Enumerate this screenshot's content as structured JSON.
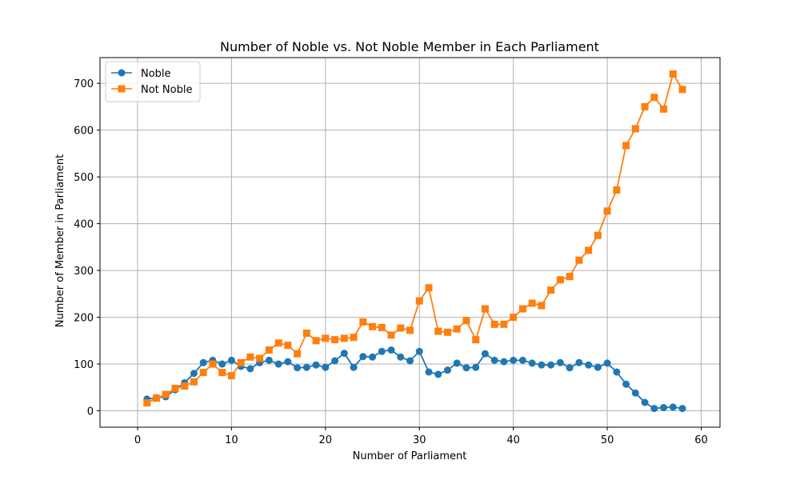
{
  "chart_data": {
    "type": "line",
    "title": "Number of Noble vs. Not Noble Member in Each Parliament",
    "xlabel": "Number of Parliament",
    "ylabel": "Number of Member in Parliament",
    "xlim": [
      -4,
      62
    ],
    "ylim": [
      -35,
      755
    ],
    "xticks": [
      0,
      10,
      20,
      30,
      40,
      50,
      60
    ],
    "yticks": [
      0,
      100,
      200,
      300,
      400,
      500,
      600,
      700
    ],
    "grid": true,
    "legend_position": "top-left",
    "x": [
      1,
      2,
      3,
      4,
      5,
      6,
      7,
      8,
      9,
      10,
      11,
      12,
      13,
      14,
      15,
      16,
      17,
      18,
      19,
      20,
      21,
      22,
      23,
      24,
      25,
      26,
      27,
      28,
      29,
      30,
      31,
      32,
      33,
      34,
      35,
      36,
      37,
      38,
      39,
      40,
      41,
      42,
      43,
      44,
      45,
      46,
      47,
      48,
      49,
      50,
      51,
      52,
      53,
      54,
      55,
      56,
      57,
      58
    ],
    "series": [
      {
        "name": "Noble",
        "color": "#1f77b4",
        "marker": "circle",
        "values": [
          25,
          28,
          30,
          45,
          60,
          80,
          103,
          108,
          100,
          108,
          95,
          90,
          103,
          108,
          100,
          105,
          92,
          93,
          98,
          93,
          107,
          123,
          93,
          116,
          115,
          127,
          130,
          115,
          107,
          127,
          83,
          78,
          87,
          102,
          92,
          93,
          122,
          108,
          105,
          108,
          108,
          102,
          98,
          98,
          103,
          92,
          103,
          98,
          93,
          102,
          83,
          57,
          38,
          18,
          5,
          7,
          8,
          5
        ]
      },
      {
        "name": "Not Noble",
        "color": "#ff7f0e",
        "marker": "square",
        "values": [
          17,
          27,
          35,
          48,
          53,
          62,
          82,
          100,
          82,
          75,
          103,
          115,
          112,
          130,
          145,
          140,
          122,
          166,
          150,
          155,
          152,
          155,
          157,
          190,
          180,
          178,
          162,
          177,
          172,
          235,
          263,
          170,
          168,
          175,
          193,
          152,
          218,
          185,
          185,
          200,
          218,
          230,
          225,
          258,
          280,
          287,
          322,
          343,
          375,
          427,
          472,
          567,
          603,
          650,
          670,
          645,
          720,
          687
        ]
      }
    ]
  }
}
